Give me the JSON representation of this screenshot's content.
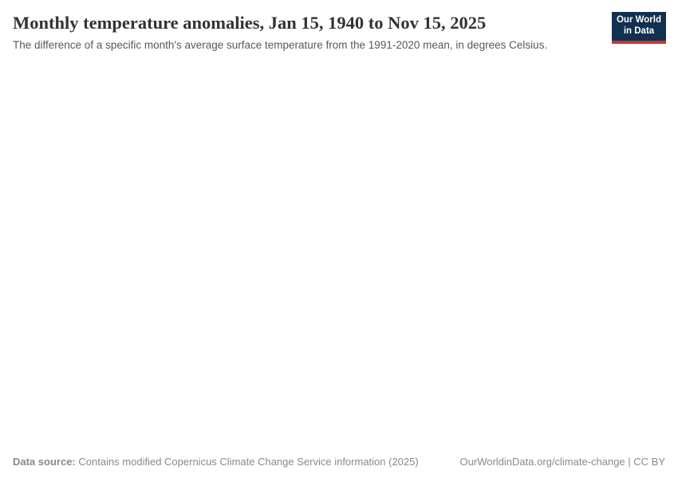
{
  "chart_data": {
    "type": "line",
    "title": "Monthly temperature anomalies, Jan 15, 1940 to Nov 15, 2025",
    "subtitle": "The difference of a specific month's average surface temperature from the 1991-2020 mean, in degrees Celsius.",
    "x": [],
    "series": [],
    "plot_rendered": false
  },
  "header": {
    "title": "Monthly temperature anomalies, Jan 15, 1940 to Nov 15, 2025",
    "subtitle": "The difference of a specific month's average surface temperature from the 1991-2020 mean, in degrees Celsius.",
    "logo": {
      "line1": "Our World",
      "line2": "in Data"
    }
  },
  "footer": {
    "source_label": "Data source:",
    "source_text": "Contains modified Copernicus Climate Change Service information (2025)",
    "link_text": "OurWorldinData.org/climate-change | CC BY"
  },
  "colors": {
    "background": "#ffffff",
    "title": "#333333",
    "subtitle": "#595959",
    "footer_text": "#8a8a8a",
    "logo_bg": "#12304f",
    "logo_accent": "#c5392f"
  }
}
